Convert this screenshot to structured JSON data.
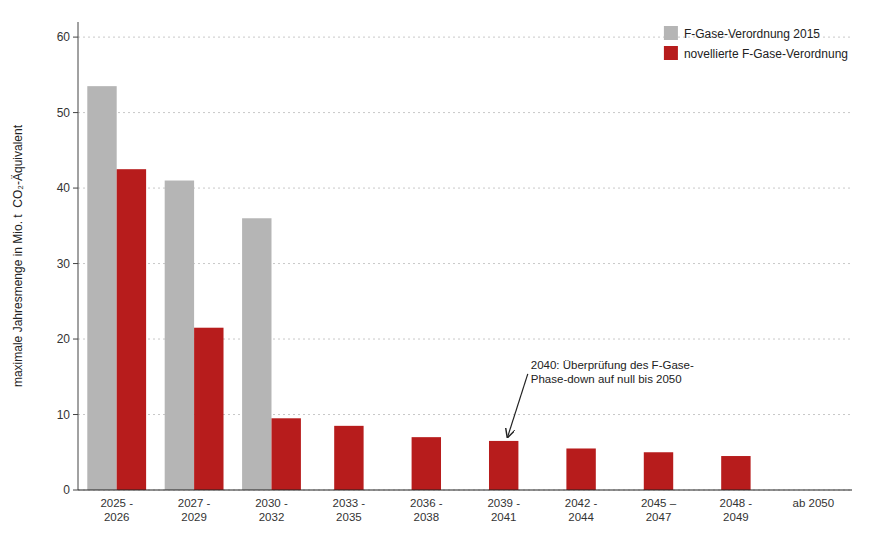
{
  "chart_data": {
    "type": "bar",
    "categories": [
      "2025 -\n2026",
      "2027 -\n2029",
      "2030 -\n2032",
      "2033 -\n2035",
      "2036 -\n2038",
      "2039 -\n2041",
      "2042 -\n2044",
      "2045 –\n2047",
      "2048 -\n2049",
      "ab 2050"
    ],
    "series": [
      {
        "name": "F-Gase-Verordnung 2015",
        "color": "#b5b5b5",
        "values": [
          53.5,
          41.0,
          36.0,
          0,
          0,
          0,
          0,
          0,
          0,
          0
        ]
      },
      {
        "name": "novellierte F-Gase-Verordnung",
        "color": "#b71c1c",
        "values": [
          42.5,
          21.5,
          9.5,
          8.5,
          7.0,
          6.5,
          5.5,
          5.0,
          4.5,
          0
        ]
      }
    ],
    "y_label": "maximale Jahresmenge in Mio. t  CO₂-Äquivalent",
    "ylim": [
      0,
      62
    ],
    "yticks": [
      0,
      10,
      20,
      30,
      40,
      50,
      60
    ],
    "grid": true,
    "legend": "upper right",
    "annotations": [
      {
        "text": "2040: Überprüfung des F-Gase-\nPhase-down auf null bis 2050",
        "x": "2039 -\n2041",
        "y": 17.5,
        "arrow_y": 7.0
      }
    ]
  }
}
